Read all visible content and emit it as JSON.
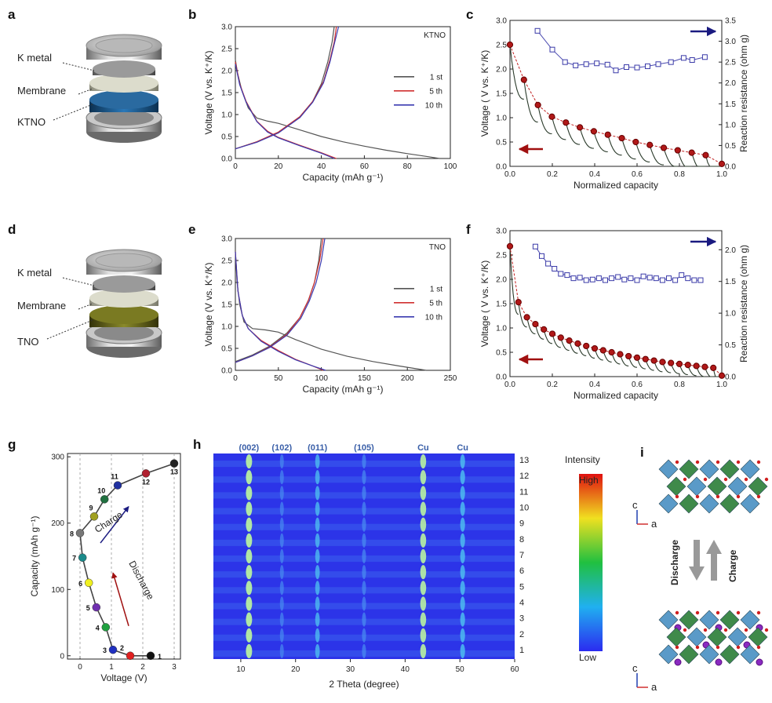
{
  "panels": {
    "a": {
      "label": "a",
      "layers": [
        "K metal",
        "Membrane",
        "KTNO"
      ],
      "electrode_color": "#1f5a90"
    },
    "d": {
      "label": "d",
      "layers": [
        "K metal",
        "Membrane",
        "TNO"
      ],
      "electrode_color": "#6b6a1e"
    },
    "i": {
      "label": "i",
      "discharge": "Discharge",
      "charge": "Charge",
      "axis_c": "c",
      "axis_a": "a"
    }
  },
  "chart_data": [
    {
      "id": "b",
      "label": "b",
      "type": "line",
      "note": "KTNO",
      "xlabel": "Capacity (mAh g⁻¹)",
      "ylabel": "Voltage (V vs. K⁺/K)",
      "xlim": [
        0,
        100
      ],
      "ylim": [
        0,
        3.0
      ],
      "xticks": [
        0,
        20,
        40,
        60,
        80,
        100
      ],
      "yticks": [
        0.0,
        0.5,
        1.0,
        1.5,
        2.0,
        2.5,
        3.0
      ],
      "legend": "right",
      "series": [
        {
          "name": "1 st",
          "color": "#555555",
          "discharge": [
            [
              0,
              2.25
            ],
            [
              1,
              1.95
            ],
            [
              3,
              1.55
            ],
            [
              6,
              1.15
            ],
            [
              10,
              0.92
            ],
            [
              15,
              0.85
            ],
            [
              20,
              0.8
            ],
            [
              30,
              0.65
            ],
            [
              40,
              0.5
            ],
            [
              50,
              0.38
            ],
            [
              60,
              0.28
            ],
            [
              70,
              0.19
            ],
            [
              80,
              0.11
            ],
            [
              90,
              0.04
            ],
            [
              95,
              0.0
            ]
          ],
          "charge": [
            [
              0,
              0.22
            ],
            [
              10,
              0.38
            ],
            [
              20,
              0.6
            ],
            [
              30,
              0.95
            ],
            [
              36,
              1.3
            ],
            [
              40,
              1.7
            ],
            [
              43,
              2.2
            ],
            [
              45,
              2.65
            ],
            [
              46,
              3.0
            ]
          ]
        },
        {
          "name": "5 th",
          "color": "#d03030",
          "discharge": [
            [
              0,
              2.2
            ],
            [
              2,
              1.7
            ],
            [
              5,
              1.3
            ],
            [
              10,
              0.85
            ],
            [
              15,
              0.62
            ],
            [
              20,
              0.48
            ],
            [
              30,
              0.3
            ],
            [
              40,
              0.13
            ],
            [
              47,
              0.0
            ]
          ],
          "charge": [
            [
              0,
              0.22
            ],
            [
              10,
              0.38
            ],
            [
              20,
              0.6
            ],
            [
              30,
              0.95
            ],
            [
              36,
              1.3
            ],
            [
              41,
              1.75
            ],
            [
              44,
              2.25
            ],
            [
              46,
              2.65
            ],
            [
              47,
              3.0
            ]
          ]
        },
        {
          "name": "10 th",
          "color": "#3a3ab0",
          "discharge": [
            [
              0,
              2.15
            ],
            [
              2,
              1.68
            ],
            [
              5,
              1.28
            ],
            [
              10,
              0.84
            ],
            [
              15,
              0.6
            ],
            [
              20,
              0.47
            ],
            [
              30,
              0.29
            ],
            [
              40,
              0.12
            ],
            [
              46,
              0.0
            ]
          ],
          "charge": [
            [
              0,
              0.22
            ],
            [
              10,
              0.37
            ],
            [
              20,
              0.58
            ],
            [
              30,
              0.93
            ],
            [
              36,
              1.28
            ],
            [
              41,
              1.72
            ],
            [
              44,
              2.2
            ],
            [
              46,
              2.6
            ],
            [
              48,
              3.0
            ]
          ]
        }
      ]
    },
    {
      "id": "c",
      "label": "c",
      "type": "line",
      "xlabel": "Normalized capacity",
      "ylabel": "Voltage ( V vs. K⁺/K)",
      "y2label": "Reaction resistance (ohm g)",
      "xlim": [
        0,
        1.0
      ],
      "ylim": [
        0,
        3.0
      ],
      "y2lim": [
        0,
        3.5
      ],
      "xticks": [
        0.0,
        0.2,
        0.4,
        0.6,
        0.8,
        1.0
      ],
      "yticks": [
        0.0,
        0.5,
        1.0,
        1.5,
        2.0,
        2.5,
        3.0
      ],
      "y2ticks": [
        0.0,
        0.5,
        1.0,
        1.5,
        2.0,
        2.5,
        3.0,
        3.5
      ],
      "ocv": {
        "x": [
          0.0,
          0.066,
          0.132,
          0.198,
          0.264,
          0.33,
          0.396,
          0.462,
          0.528,
          0.594,
          0.66,
          0.726,
          0.792,
          0.858,
          0.924,
          1.0
        ],
        "y": [
          2.5,
          1.78,
          1.26,
          1.02,
          0.9,
          0.8,
          0.72,
          0.65,
          0.58,
          0.5,
          0.44,
          0.38,
          0.33,
          0.28,
          0.23,
          0.05
        ]
      },
      "resistance": {
        "x": [
          0.13,
          0.2,
          0.26,
          0.31,
          0.36,
          0.41,
          0.46,
          0.5,
          0.55,
          0.6,
          0.65,
          0.7,
          0.76,
          0.82,
          0.86,
          0.92
        ],
        "y": [
          3.25,
          2.8,
          2.5,
          2.42,
          2.45,
          2.47,
          2.44,
          2.3,
          2.38,
          2.37,
          2.4,
          2.45,
          2.5,
          2.6,
          2.55,
          2.62
        ]
      }
    },
    {
      "id": "e",
      "label": "e",
      "type": "line",
      "note": "TNO",
      "xlabel": "Capacity (mAh g⁻¹)",
      "ylabel": "Voltage (V vs. K⁺/K)",
      "xlim": [
        0,
        250
      ],
      "ylim": [
        0,
        3.0
      ],
      "xticks": [
        0,
        50,
        100,
        150,
        200,
        250
      ],
      "yticks": [
        0.0,
        0.5,
        1.0,
        1.5,
        2.0,
        2.5,
        3.0
      ],
      "legend": "right",
      "series": [
        {
          "name": "1 st",
          "color": "#555555",
          "discharge": [
            [
              0,
              2.7
            ],
            [
              2,
              2.0
            ],
            [
              5,
              1.5
            ],
            [
              10,
              1.1
            ],
            [
              20,
              0.95
            ],
            [
              35,
              0.92
            ],
            [
              50,
              0.87
            ],
            [
              70,
              0.7
            ],
            [
              100,
              0.48
            ],
            [
              130,
              0.32
            ],
            [
              160,
              0.2
            ],
            [
              190,
              0.1
            ],
            [
              222,
              0.0
            ]
          ],
          "charge": [
            [
              0,
              0.2
            ],
            [
              20,
              0.35
            ],
            [
              40,
              0.55
            ],
            [
              60,
              0.85
            ],
            [
              75,
              1.2
            ],
            [
              85,
              1.6
            ],
            [
              92,
              2.0
            ],
            [
              97,
              2.5
            ],
            [
              100,
              3.0
            ]
          ]
        },
        {
          "name": "5 th",
          "color": "#d03030",
          "discharge": [
            [
              0,
              2.7
            ],
            [
              3,
              1.8
            ],
            [
              8,
              1.25
            ],
            [
              15,
              0.95
            ],
            [
              30,
              0.68
            ],
            [
              50,
              0.45
            ],
            [
              70,
              0.25
            ],
            [
              90,
              0.1
            ],
            [
              102,
              0.0
            ]
          ],
          "charge": [
            [
              0,
              0.18
            ],
            [
              20,
              0.33
            ],
            [
              40,
              0.53
            ],
            [
              60,
              0.82
            ],
            [
              75,
              1.2
            ],
            [
              85,
              1.6
            ],
            [
              92,
              2.0
            ],
            [
              98,
              2.5
            ],
            [
              102,
              3.0
            ]
          ]
        },
        {
          "name": "10 th",
          "color": "#3a3ab0",
          "discharge": [
            [
              0,
              2.7
            ],
            [
              3,
              1.8
            ],
            [
              8,
              1.25
            ],
            [
              15,
              0.95
            ],
            [
              30,
              0.66
            ],
            [
              50,
              0.43
            ],
            [
              70,
              0.24
            ],
            [
              90,
              0.1
            ],
            [
              105,
              0.0
            ]
          ],
          "charge": [
            [
              0,
              0.18
            ],
            [
              20,
              0.33
            ],
            [
              40,
              0.52
            ],
            [
              60,
              0.8
            ],
            [
              76,
              1.18
            ],
            [
              86,
              1.58
            ],
            [
              94,
              2.0
            ],
            [
              100,
              2.5
            ],
            [
              104,
              3.0
            ]
          ]
        }
      ]
    },
    {
      "id": "f",
      "label": "f",
      "type": "line",
      "xlabel": "Normalized capacity",
      "ylabel": "Voltage ( V vs. K⁺/K)",
      "y2label": "Reaction resistance (ohm g)",
      "xlim": [
        0,
        1.0
      ],
      "ylim": [
        0,
        3.0
      ],
      "y2lim": [
        0,
        2.3
      ],
      "xticks": [
        0.0,
        0.2,
        0.4,
        0.6,
        0.8,
        1.0
      ],
      "yticks": [
        0.0,
        0.5,
        1.0,
        1.5,
        2.0,
        2.5,
        3.0
      ],
      "y2ticks": [
        0.0,
        0.5,
        1.0,
        1.5,
        2.0
      ],
      "ocv": {
        "x": [
          0.0,
          0.04,
          0.08,
          0.12,
          0.16,
          0.2,
          0.24,
          0.28,
          0.32,
          0.36,
          0.4,
          0.44,
          0.48,
          0.52,
          0.56,
          0.6,
          0.64,
          0.68,
          0.72,
          0.76,
          0.8,
          0.84,
          0.88,
          0.92,
          0.96,
          1.0
        ],
        "y": [
          2.68,
          1.53,
          1.22,
          1.08,
          0.97,
          0.88,
          0.8,
          0.74,
          0.68,
          0.63,
          0.58,
          0.54,
          0.5,
          0.46,
          0.42,
          0.39,
          0.36,
          0.33,
          0.3,
          0.28,
          0.26,
          0.24,
          0.22,
          0.2,
          0.18,
          0.02
        ]
      },
      "resistance": {
        "x": [
          0.12,
          0.15,
          0.18,
          0.21,
          0.24,
          0.27,
          0.3,
          0.33,
          0.36,
          0.39,
          0.42,
          0.45,
          0.48,
          0.51,
          0.54,
          0.57,
          0.6,
          0.63,
          0.66,
          0.69,
          0.72,
          0.75,
          0.78,
          0.81,
          0.84,
          0.87,
          0.9
        ],
        "y": [
          2.05,
          1.9,
          1.78,
          1.7,
          1.62,
          1.6,
          1.55,
          1.56,
          1.52,
          1.53,
          1.55,
          1.52,
          1.55,
          1.57,
          1.53,
          1.55,
          1.52,
          1.58,
          1.56,
          1.55,
          1.52,
          1.55,
          1.52,
          1.6,
          1.55,
          1.52,
          1.52
        ]
      }
    },
    {
      "id": "g",
      "label": "g",
      "type": "line",
      "xlabel": "Voltage (V)",
      "ylabel": "Capacity (mAh g⁻¹)",
      "xlim": [
        -0.4,
        3.2
      ],
      "ylim": [
        -5,
        305
      ],
      "xticks": [
        0,
        1,
        2,
        3
      ],
      "yticks": [
        0,
        100,
        200,
        300
      ],
      "annotations": [
        "Discharge",
        "Charge"
      ],
      "points": [
        {
          "n": "1",
          "v": 2.25,
          "c": 0,
          "color": "#111111"
        },
        {
          "n": "2",
          "v": 1.6,
          "c": 0,
          "color": "#e02020"
        },
        {
          "n": "3",
          "v": 1.05,
          "c": 9,
          "color": "#2030c0"
        },
        {
          "n": "4",
          "v": 0.82,
          "c": 43,
          "color": "#20a040"
        },
        {
          "n": "5",
          "v": 0.52,
          "c": 73,
          "color": "#7030b0"
        },
        {
          "n": "6",
          "v": 0.28,
          "c": 110,
          "color": "#f0f020"
        },
        {
          "n": "7",
          "v": 0.08,
          "c": 148,
          "color": "#1a8a8a"
        },
        {
          "n": "8",
          "v": 0.0,
          "c": 185,
          "color": "#777777"
        },
        {
          "n": "9",
          "v": 0.45,
          "c": 210,
          "color": "#a0a020"
        },
        {
          "n": "10",
          "v": 0.78,
          "c": 236,
          "color": "#207040"
        },
        {
          "n": "11",
          "v": 1.2,
          "c": 257,
          "color": "#2030a0"
        },
        {
          "n": "12",
          "v": 2.1,
          "c": 275,
          "color": "#b02030"
        },
        {
          "n": "13",
          "v": 3.0,
          "c": 290,
          "color": "#222222"
        }
      ]
    },
    {
      "id": "h",
      "label": "h",
      "type": "heatmap",
      "xlabel": "2 Theta (degree)",
      "xlim": [
        5,
        60
      ],
      "xticks": [
        10,
        20,
        30,
        40,
        50,
        60
      ],
      "peaks": [
        {
          "label": "(002)",
          "pos": 11.5,
          "strength": 1.0
        },
        {
          "label": "(102)",
          "pos": 17.5,
          "strength": 0.25
        },
        {
          "label": "(011)",
          "pos": 24.0,
          "strength": 0.45
        },
        {
          "label": "(105)",
          "pos": 32.5,
          "strength": 0.3
        },
        {
          "label": "Cu",
          "pos": 43.3,
          "strength": 0.9
        },
        {
          "label": "Cu",
          "pos": 50.5,
          "strength": 0.55
        }
      ],
      "rows": [
        "1",
        "2",
        "3",
        "4",
        "5",
        "6",
        "7",
        "8",
        "9",
        "10",
        "11",
        "12",
        "13"
      ],
      "colorbar": {
        "title": "Intensity",
        "high": "High",
        "low": "Low"
      }
    }
  ]
}
